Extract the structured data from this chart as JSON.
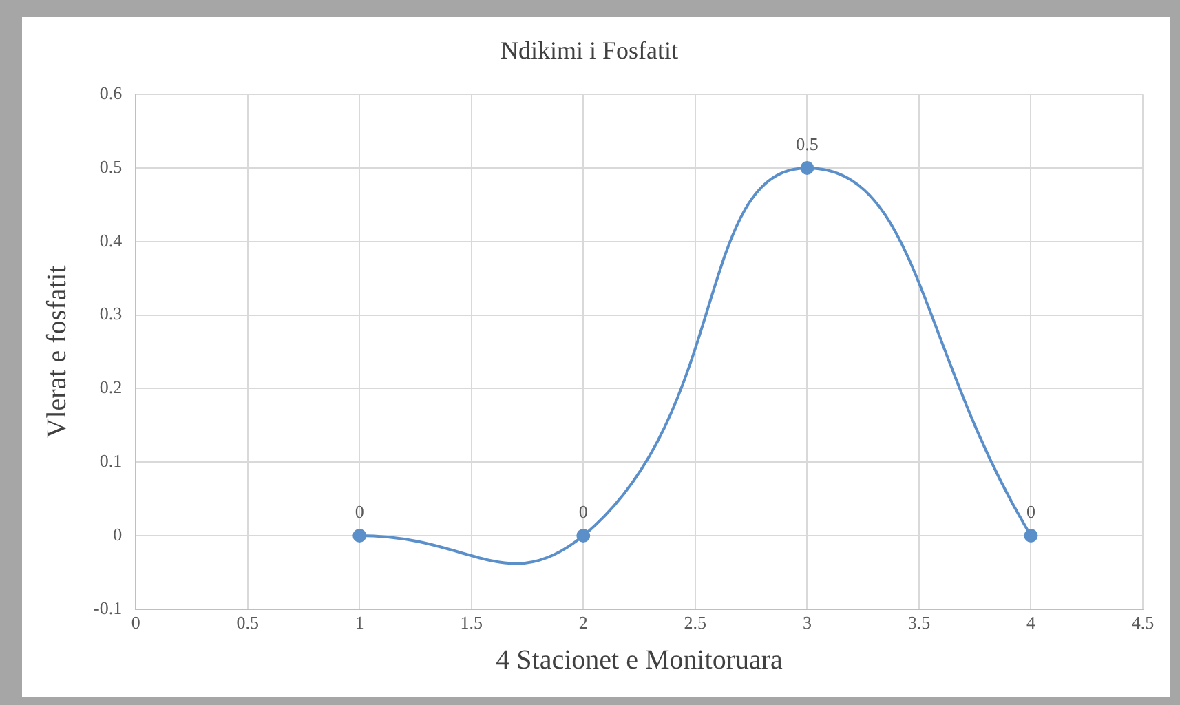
{
  "chart_data": {
    "type": "line",
    "title": "Ndikimi i Fosfatit",
    "xlabel": "4 Stacionet e Monitoruara",
    "ylabel": "Vlerat e fosfatit",
    "x": [
      1,
      2,
      3,
      4
    ],
    "series": [
      {
        "color": "#5b8fc9",
        "values": [
          0,
          0,
          0.5,
          0
        ]
      }
    ],
    "xlim": [
      0,
      4.5
    ],
    "xticks": [
      0,
      0.5,
      1,
      1.5,
      2,
      2.5,
      3,
      3.5,
      4,
      4.5
    ],
    "ylim": [
      -0.1,
      0.6
    ],
    "yticks": [
      -0.1,
      0,
      0.1,
      0.2,
      0.3,
      0.4,
      0.5,
      0.6
    ],
    "grid": true,
    "marker": "circle",
    "line_style": "solid",
    "data_labels": true
  }
}
